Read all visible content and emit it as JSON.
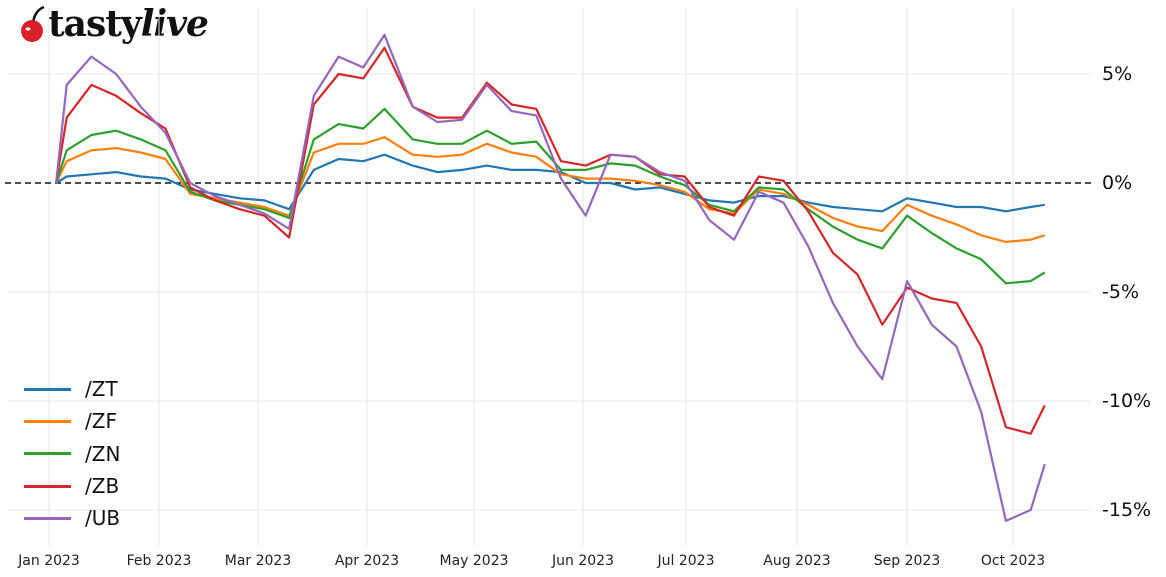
{
  "brand": {
    "name_part1": "tasty",
    "name_part2": "live",
    "logo_icon": "cherry-icon",
    "logo_color": "#d9202a"
  },
  "chart_data": {
    "type": "line",
    "title": "",
    "xlabel": "",
    "ylabel": "",
    "ylim": [
      -16.5,
      8.0
    ],
    "yticks": [
      "5%",
      "0%",
      "-5%",
      "-10%",
      "-15%"
    ],
    "ytick_values": [
      5,
      0,
      -5,
      -10,
      -15
    ],
    "xticks": [
      "Jan 2023",
      "Feb 2023",
      "Mar 2023",
      "Apr 2023",
      "May 2023",
      "Jun 2023",
      "Jul 2023",
      "Aug 2023",
      "Sep 2023",
      "Oct 2023"
    ],
    "grid": true,
    "zero_line": "dashed",
    "legend_position": "lower left",
    "x": [
      "2023-01-03",
      "2023-01-06",
      "2023-01-13",
      "2023-01-20",
      "2023-01-27",
      "2023-02-03",
      "2023-02-10",
      "2023-02-17",
      "2023-02-24",
      "2023-03-03",
      "2023-03-10",
      "2023-03-17",
      "2023-03-24",
      "2023-03-31",
      "2023-04-06",
      "2023-04-14",
      "2023-04-21",
      "2023-04-28",
      "2023-05-05",
      "2023-05-12",
      "2023-05-19",
      "2023-05-26",
      "2023-06-02",
      "2023-06-09",
      "2023-06-16",
      "2023-06-23",
      "2023-06-30",
      "2023-07-07",
      "2023-07-14",
      "2023-07-21",
      "2023-07-28",
      "2023-08-04",
      "2023-08-11",
      "2023-08-18",
      "2023-08-25",
      "2023-09-01",
      "2023-09-08",
      "2023-09-15",
      "2023-09-22",
      "2023-09-29",
      "2023-10-06",
      "2023-10-10"
    ],
    "series": [
      {
        "name": "/ZT",
        "color": "#1f77b4",
        "values": [
          0.0,
          0.3,
          0.4,
          0.5,
          0.3,
          0.2,
          -0.3,
          -0.5,
          -0.7,
          -0.8,
          -1.2,
          0.6,
          1.1,
          1.0,
          1.3,
          0.8,
          0.5,
          0.6,
          0.8,
          0.6,
          0.6,
          0.5,
          0.0,
          0.0,
          -0.3,
          -0.2,
          -0.5,
          -0.8,
          -0.9,
          -0.6,
          -0.6,
          -0.9,
          -1.1,
          -1.2,
          -1.3,
          -0.7,
          -0.9,
          -1.1,
          -1.1,
          -1.3,
          -1.1,
          -1.0
        ]
      },
      {
        "name": "/ZF",
        "color": "#ff7f0e",
        "values": [
          0.0,
          1.0,
          1.5,
          1.6,
          1.4,
          1.1,
          -0.5,
          -0.7,
          -0.9,
          -1.1,
          -1.5,
          1.4,
          1.8,
          1.8,
          2.1,
          1.3,
          1.2,
          1.3,
          1.8,
          1.4,
          1.2,
          0.4,
          0.2,
          0.2,
          0.1,
          -0.1,
          -0.4,
          -1.2,
          -1.4,
          -0.3,
          -0.5,
          -1.0,
          -1.6,
          -2.0,
          -2.2,
          -1.0,
          -1.5,
          -1.9,
          -2.4,
          -2.7,
          -2.6,
          -2.4
        ]
      },
      {
        "name": "/ZN",
        "color": "#2ca02c",
        "values": [
          0.0,
          1.5,
          2.2,
          2.4,
          2.0,
          1.5,
          -0.4,
          -0.8,
          -1.0,
          -1.2,
          -1.6,
          2.0,
          2.7,
          2.5,
          3.4,
          2.0,
          1.8,
          1.8,
          2.4,
          1.8,
          1.9,
          0.6,
          0.6,
          0.9,
          0.8,
          0.3,
          -0.1,
          -1.0,
          -1.3,
          -0.2,
          -0.3,
          -1.2,
          -2.0,
          -2.6,
          -3.0,
          -1.5,
          -2.3,
          -3.0,
          -3.5,
          -4.6,
          -4.5,
          -4.1
        ]
      },
      {
        "name": "/ZB",
        "color": "#d62728",
        "values": [
          0.0,
          3.0,
          4.5,
          4.0,
          3.2,
          2.5,
          -0.2,
          -0.8,
          -1.2,
          -1.5,
          -2.5,
          3.6,
          5.0,
          4.8,
          6.2,
          3.5,
          3.0,
          3.0,
          4.6,
          3.6,
          3.4,
          1.0,
          0.8,
          1.3,
          1.2,
          0.4,
          0.3,
          -1.1,
          -1.5,
          0.3,
          0.1,
          -1.3,
          -3.2,
          -4.2,
          -6.5,
          -4.8,
          -5.3,
          -5.5,
          -7.5,
          -11.2,
          -11.5,
          -10.2
        ]
      },
      {
        "name": "/UB",
        "color": "#9467bd",
        "values": [
          0.0,
          4.5,
          5.8,
          5.0,
          3.5,
          2.3,
          0.0,
          -0.6,
          -1.0,
          -1.4,
          -2.1,
          4.0,
          5.8,
          5.3,
          6.8,
          3.5,
          2.8,
          2.9,
          4.5,
          3.3,
          3.1,
          0.2,
          -1.5,
          1.3,
          1.2,
          0.5,
          0.1,
          -1.7,
          -2.6,
          -0.4,
          -0.9,
          -2.9,
          -5.5,
          -7.5,
          -9.0,
          -4.5,
          -6.5,
          -7.5,
          -10.5,
          -15.5,
          -15.0,
          -12.9
        ]
      }
    ]
  }
}
